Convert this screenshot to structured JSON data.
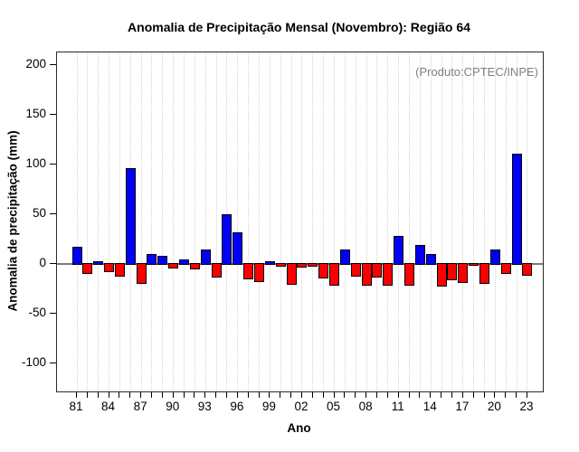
{
  "chart_data": {
    "type": "bar",
    "title": "Anomalia de Precipitação Mensal (Novembro): Região 64",
    "xlabel": "Ano",
    "ylabel": "Anomalia de precipitação (mm)",
    "annotation": "(Produto:CPTEC/INPE)",
    "categories": [
      "81",
      "82",
      "83",
      "84",
      "85",
      "86",
      "87",
      "88",
      "89",
      "90",
      "91",
      "92",
      "93",
      "94",
      "95",
      "96",
      "97",
      "98",
      "99",
      "00",
      "01",
      "02",
      "03",
      "04",
      "05",
      "06",
      "07",
      "08",
      "09",
      "10",
      "11",
      "12",
      "13",
      "14",
      "15",
      "16",
      "17",
      "18",
      "19",
      "20",
      "21",
      "22",
      "23"
    ],
    "values": [
      16,
      -9,
      2,
      -7,
      -12,
      95,
      -19,
      9,
      7,
      -4,
      3,
      -5,
      13,
      -13,
      49,
      31,
      -15,
      -17,
      2,
      -2,
      -20,
      -3,
      -2,
      -14,
      -21,
      13,
      -12,
      -21,
      -13,
      -21,
      27,
      -21,
      18,
      9,
      -22,
      -16,
      -18,
      -1,
      -19,
      13,
      -9,
      110,
      -11
    ],
    "yticks": [
      200,
      150,
      100,
      50,
      0,
      -50,
      -100
    ],
    "ylim": [
      -128,
      212
    ],
    "x_label_every": 3,
    "grid": "vertical-dotted",
    "positive_color": "#0000f5",
    "negative_color": "#fa0000",
    "annotation_color": "#808080"
  }
}
